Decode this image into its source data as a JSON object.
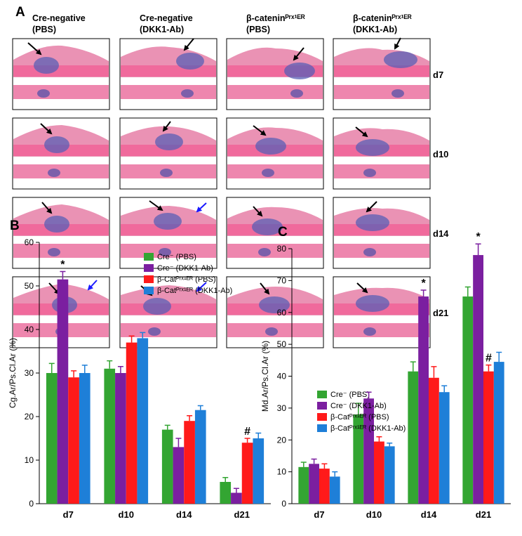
{
  "panel_a": {
    "label": "A",
    "columns": [
      {
        "line1": "Cre-negative",
        "line2": "(PBS)"
      },
      {
        "line1": "Cre-negative",
        "line2": "(DKK1-Ab)"
      },
      {
        "line1": "β-cateninᴾʳˣ¹ᴱᴿ",
        "line2": "(PBS)"
      },
      {
        "line1": "β-cateninᴾʳˣ¹ᴱᴿ",
        "line2": "(DKK1-Ab)"
      }
    ],
    "rows": [
      "d7",
      "d10",
      "d14",
      "d21"
    ]
  },
  "chart_data": [
    {
      "type": "bar",
      "panel_label": "B",
      "y_label": "Cg.Ar/Ps.Cl.Ar (%)",
      "categories": [
        "d7",
        "d10",
        "d14",
        "d21"
      ],
      "ylim": [
        0,
        60
      ],
      "yticks": [
        0,
        10,
        20,
        30,
        40,
        50,
        60
      ],
      "series": [
        {
          "name": "Cre⁻ (PBS)",
          "color": "#33a532",
          "values": [
            30,
            31,
            17,
            5
          ],
          "errors": [
            2.2,
            1.8,
            1,
            1
          ]
        },
        {
          "name": "Cre⁻ (DKK1-Ab)",
          "color": "#7b1fa0",
          "values": [
            51.5,
            30,
            13,
            2.5
          ],
          "errors": [
            1.8,
            1.5,
            2,
            1
          ]
        },
        {
          "name": "β-Catᴾʳˣ¹ᴱᴿ (PBS)",
          "color": "#ff1a1a",
          "values": [
            29,
            37,
            19,
            14
          ],
          "errors": [
            1.5,
            1.5,
            1.2,
            1
          ]
        },
        {
          "name": "β-Catᴾʳˣ¹ᴱᴿ (DKK1-Ab)",
          "color": "#1e7fd8",
          "values": [
            30,
            38,
            21.5,
            15
          ],
          "errors": [
            1.8,
            1.3,
            1,
            1.2
          ]
        }
      ],
      "annotations": [
        {
          "text": "*",
          "series": 1,
          "index": 0
        },
        {
          "text": "#",
          "series": 2,
          "index": 3
        }
      ]
    },
    {
      "type": "bar",
      "panel_label": "C",
      "y_label": "Md.Ar/Ps.Cl.Ar (%)",
      "categories": [
        "d7",
        "d10",
        "d14",
        "d21"
      ],
      "ylim": [
        0,
        80
      ],
      "yticks": [
        0,
        10,
        20,
        30,
        40,
        50,
        60,
        70,
        80
      ],
      "series": [
        {
          "name": "Cre⁻ (PBS)",
          "color": "#33a532",
          "values": [
            11.5,
            28,
            41.5,
            65
          ],
          "errors": [
            1.5,
            3.5,
            3,
            3
          ]
        },
        {
          "name": "Cre⁻ (DKK1-Ab)",
          "color": "#7b1fa0",
          "values": [
            12.5,
            33,
            65,
            78
          ],
          "errors": [
            1.5,
            2,
            2,
            3.5
          ]
        },
        {
          "name": "β-Catᴾʳˣ¹ᴱᴿ (PBS)",
          "color": "#ff1a1a",
          "values": [
            11,
            19.5,
            39.5,
            41.5
          ],
          "errors": [
            1.5,
            1.5,
            3.5,
            2
          ]
        },
        {
          "name": "β-Catᴾʳˣ¹ᴱᴿ (DKK1-Ab)",
          "color": "#1e7fd8",
          "values": [
            8.5,
            18,
            35,
            44.5
          ],
          "errors": [
            1.5,
            1,
            2,
            3
          ]
        }
      ],
      "annotations": [
        {
          "text": "*",
          "series": 1,
          "index": 2
        },
        {
          "text": "*",
          "series": 1,
          "index": 3
        },
        {
          "text": "#",
          "series": 2,
          "index": 3
        }
      ]
    }
  ]
}
